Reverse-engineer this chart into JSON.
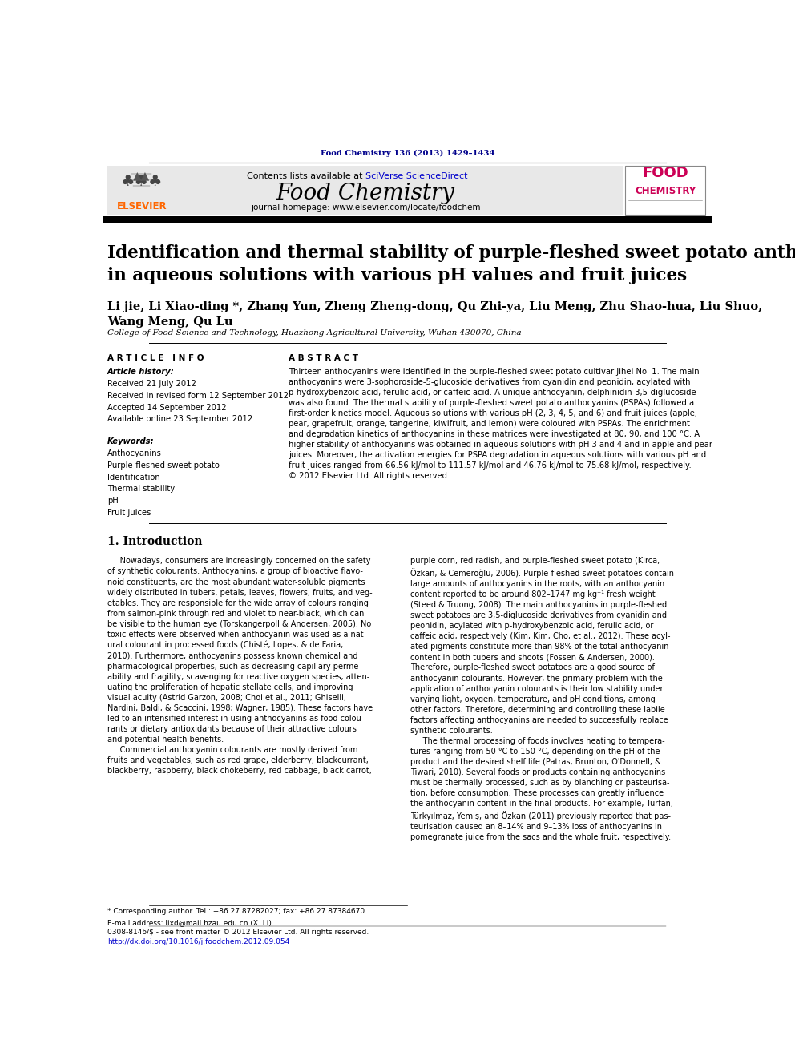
{
  "page_width": 9.92,
  "page_height": 13.23,
  "background": "#ffffff",
  "journal_ref": "Food Chemistry 136 (2013) 1429–1434",
  "journal_ref_color": "#00008B",
  "header_bg": "#e8e8e8",
  "journal_name": "Food Chemistry",
  "journal_homepage": "journal homepage: www.elsevier.com/locate/foodchem",
  "elsevier_color": "#FF6600",
  "title": "Identification and thermal stability of purple-fleshed sweet potato anthocyanins\nin aqueous solutions with various pH values and fruit juices",
  "authors": "Li jie, Li Xiao-ding *, Zhang Yun, Zheng Zheng-dong, Qu Zhi-ya, Liu Meng, Zhu Shao-hua, Liu Shuo,\nWang Meng, Qu Lu",
  "affiliation": "College of Food Science and Technology, Huazhong Agricultural University, Wuhan 430070, China",
  "article_info_label": "A R T I C L E   I N F O",
  "abstract_label": "A B S T R A C T",
  "article_history_label": "Article history:",
  "received": "Received 21 July 2012",
  "revised": "Received in revised form 12 September 2012",
  "accepted": "Accepted 14 September 2012",
  "available": "Available online 23 September 2012",
  "keywords_label": "Keywords:",
  "keywords": [
    "Anthocyanins",
    "Purple-fleshed sweet potato",
    "Identification",
    "Thermal stability",
    "pH",
    "Fruit juices"
  ],
  "abstract_text": "Thirteen anthocyanins were identified in the purple-fleshed sweet potato cultivar Jihei No. 1. The main\nanthocyanins were 3-sophoroside-5-glucoside derivatives from cyanidin and peonidin, acylated with\np-hydroxybenzoic acid, ferulic acid, or caffeic acid. A unique anthocyanin, delphinidin-3,5-diglucoside\nwas also found. The thermal stability of purple-fleshed sweet potato anthocyanins (PSPAs) followed a\nfirst-order kinetics model. Aqueous solutions with various pH (2, 3, 4, 5, and 6) and fruit juices (apple,\npear, grapefruit, orange, tangerine, kiwifruit, and lemon) were coloured with PSPAs. The enrichment\nand degradation kinetics of anthocyanins in these matrices were investigated at 80, 90, and 100 °C. A\nhigher stability of anthocyanins was obtained in aqueous solutions with pH 3 and 4 and in apple and pear\njuices. Moreover, the activation energies for PSPA degradation in aqueous solutions with various pH and\nfruit juices ranged from 66.56 kJ/mol to 111.57 kJ/mol and 46.76 kJ/mol to 75.68 kJ/mol, respectively.\n© 2012 Elsevier Ltd. All rights reserved.",
  "section1_title": "1. Introduction",
  "intro_col1": "     Nowadays, consumers are increasingly concerned on the safety\nof synthetic colourants. Anthocyanins, a group of bioactive flavo-\nnoid constituents, are the most abundant water-soluble pigments\nwidely distributed in tubers, petals, leaves, flowers, fruits, and veg-\netables. They are responsible for the wide array of colours ranging\nfrom salmon-pink through red and violet to near-black, which can\nbe visible to the human eye (Torskangerpoll & Andersen, 2005). No\ntoxic effects were observed when anthocyanin was used as a nat-\nural colourant in processed foods (Chisté, Lopes, & de Faria,\n2010). Furthermore, anthocyanins possess known chemical and\npharmacological properties, such as decreasing capillary perme-\nability and fragility, scavenging for reactive oxygen species, atten-\nuating the proliferation of hepatic stellate cells, and improving\nvisual acuity (Astrid Garzon, 2008; Choi et al., 2011; Ghiselli,\nNardini, Baldi, & Scaccini, 1998; Wagner, 1985). These factors have\nled to an intensified interest in using anthocyanins as food colou-\nrants or dietary antioxidants because of their attractive colours\nand potential health benefits.\n     Commercial anthocyanin colourants are mostly derived from\nfruits and vegetables, such as red grape, elderberry, blackcurrant,\nblackberry, raspberry, black chokeberry, red cabbage, black carrot,",
  "intro_col2": "purple corn, red radish, and purple-fleshed sweet potato (Kirca,\nÖzkan, & Cemeroğlu, 2006). Purple-fleshed sweet potatoes contain\nlarge amounts of anthocyanins in the roots, with an anthocyanin\ncontent reported to be around 802–1747 mg kg⁻¹ fresh weight\n(Steed & Truong, 2008). The main anthocyanins in purple-fleshed\nsweet potatoes are 3,5-diglucoside derivatives from cyanidin and\npeonidin, acylated with p-hydroxybenzoic acid, ferulic acid, or\ncaffeic acid, respectively (Kim, Kim, Cho, et al., 2012). These acyl-\nated pigments constitute more than 98% of the total anthocyanin\ncontent in both tubers and shoots (Fossen & Andersen, 2000).\nTherefore, purple-fleshed sweet potatoes are a good source of\nanthocyanin colourants. However, the primary problem with the\napplication of anthocyanin colourants is their low stability under\nvarying light, oxygen, temperature, and pH conditions, among\nother factors. Therefore, determining and controlling these labile\nfactors affecting anthocyanins are needed to successfully replace\nsynthetic colourants.\n     The thermal processing of foods involves heating to tempera-\ntures ranging from 50 °C to 150 °C, depending on the pH of the\nproduct and the desired shelf life (Patras, Brunton, O'Donnell, &\nTiwari, 2010). Several foods or products containing anthocyanins\nmust be thermally processed, such as by blanching or pasteurisa-\ntion, before consumption. These processes can greatly influence\nthe anthocyanin content in the final products. For example, Turfan,\nTürkyılmaz, Yemiş, and Özkan (2011) previously reported that pas-\nteurisation caused an 8–14% and 9–13% loss of anthocyanins in\npomegranate juice from the sacs and the whole fruit, respectively.",
  "footnote_star": "* Corresponding author. Tel.: +86 27 87282027; fax: +86 27 87384670.",
  "footnote_email": "E-mail address: lixd@mail.hzau.edu.cn (X. Li).",
  "footnote_issn": "0308-8146/$ - see front matter © 2012 Elsevier Ltd. All rights reserved.",
  "footnote_doi": "http://dx.doi.org/10.1016/j.foodchem.2012.09.054",
  "link_color": "#0000CC",
  "orange_link_color": "#CC6600"
}
